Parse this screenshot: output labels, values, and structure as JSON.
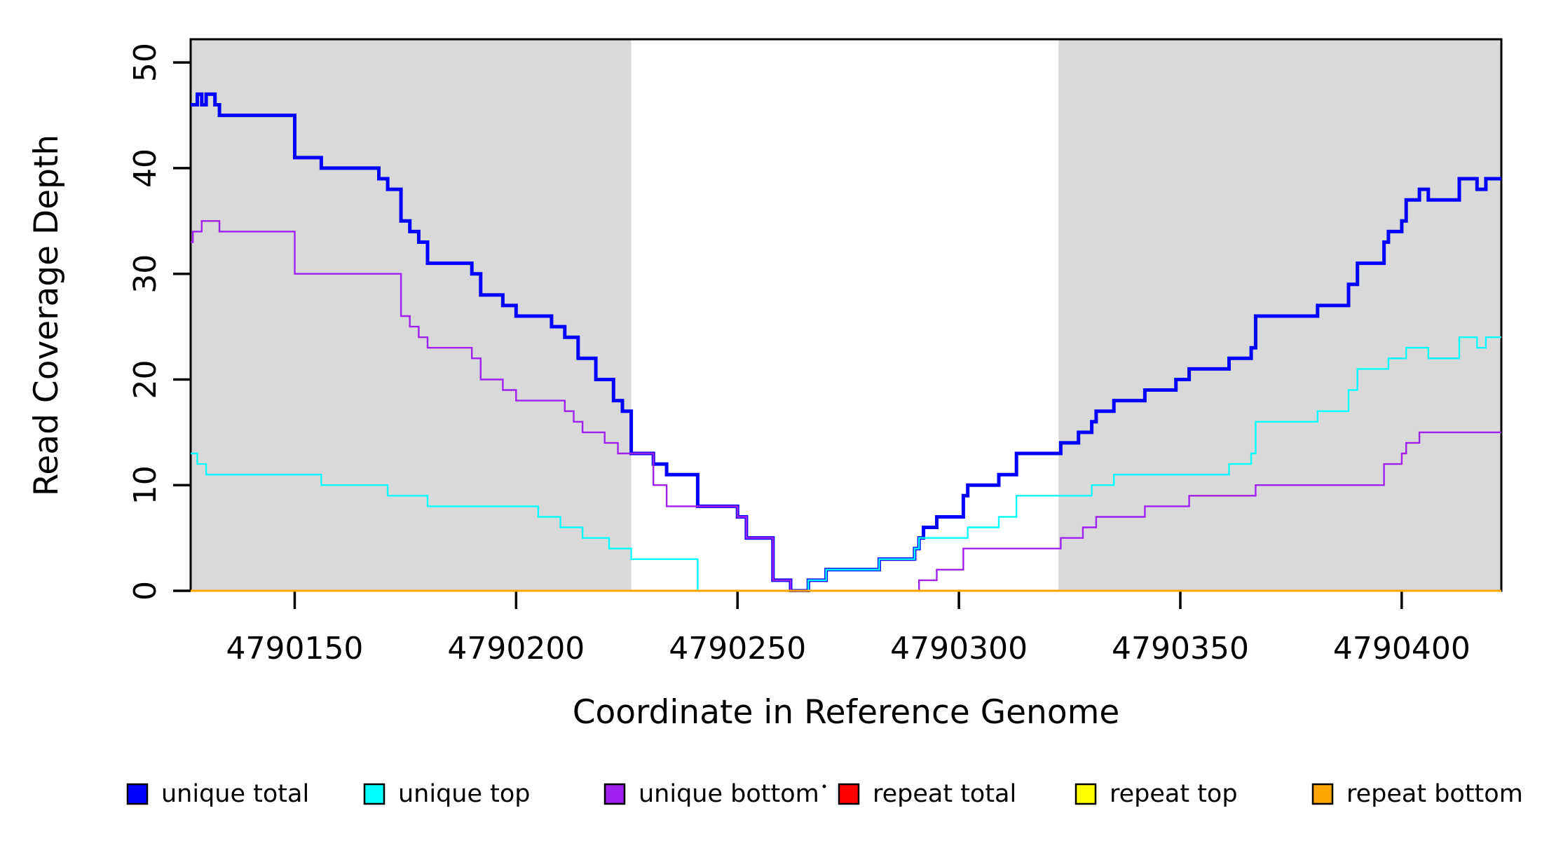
{
  "chart_data": {
    "type": "line",
    "subtype": "step-after",
    "title": "",
    "xlabel": "Coordinate in Reference Genome",
    "ylabel": "Read Coverage Depth",
    "x_range": [
      4790126.5,
      4790422.5
    ],
    "y_range": [
      0,
      52.2
    ],
    "x_ticks": [
      4790150,
      4790200,
      4790250,
      4790300,
      4790350,
      4790400
    ],
    "y_ticks": [
      0,
      10,
      20,
      30,
      40,
      50
    ],
    "grid": "off",
    "background": "#ffffff",
    "shaded_regions": [
      {
        "x0": 4790126.5,
        "x1": 4790226,
        "color": "#d9d9d9",
        "meaning": "repeat-flanking shaded band (left)"
      },
      {
        "x0": 4790322.5,
        "x1": 4790422.5,
        "color": "#d9d9d9",
        "meaning": "repeat-flanking shaded band (right)"
      }
    ],
    "series": [
      {
        "name": "unique total",
        "color": "#0000ff",
        "lwd": 5,
        "points": [
          [
            4790126.5,
            46
          ],
          [
            4790128,
            47
          ],
          [
            4790129,
            46
          ],
          [
            4790130,
            47
          ],
          [
            4790132,
            46
          ],
          [
            4790133,
            45
          ],
          [
            4790150,
            41
          ],
          [
            4790156,
            40
          ],
          [
            4790169,
            39
          ],
          [
            4790171,
            38
          ],
          [
            4790174,
            35
          ],
          [
            4790176,
            34
          ],
          [
            4790178,
            33
          ],
          [
            4790180,
            31
          ],
          [
            4790190,
            30
          ],
          [
            4790192,
            28
          ],
          [
            4790197,
            27
          ],
          [
            4790200,
            26
          ],
          [
            4790208,
            25
          ],
          [
            4790211,
            24
          ],
          [
            4790214,
            22
          ],
          [
            4790218,
            20
          ],
          [
            4790222,
            18
          ],
          [
            4790224,
            17
          ],
          [
            4790226,
            13
          ],
          [
            4790231,
            12
          ],
          [
            4790234,
            11
          ],
          [
            4790241,
            8
          ],
          [
            4790250,
            7
          ],
          [
            4790252,
            5
          ],
          [
            4790258,
            1
          ],
          [
            4790262,
            0
          ],
          [
            4790266,
            1
          ],
          [
            4790270,
            2
          ],
          [
            4790282,
            3
          ],
          [
            4790290,
            4
          ],
          [
            4790291,
            5
          ],
          [
            4790292,
            6
          ],
          [
            4790295,
            7
          ],
          [
            4790301,
            9
          ],
          [
            4790302,
            10
          ],
          [
            4790309,
            11
          ],
          [
            4790313,
            13
          ],
          [
            4790323,
            14
          ],
          [
            4790327,
            15
          ],
          [
            4790330,
            16
          ],
          [
            4790331,
            17
          ],
          [
            4790335,
            18
          ],
          [
            4790342,
            19
          ],
          [
            4790349,
            20
          ],
          [
            4790352,
            21
          ],
          [
            4790361,
            22
          ],
          [
            4790366,
            23
          ],
          [
            4790367,
            26
          ],
          [
            4790381,
            27
          ],
          [
            4790388,
            29
          ],
          [
            4790390,
            31
          ],
          [
            4790396,
            33
          ],
          [
            4790397,
            34
          ],
          [
            4790400,
            35
          ],
          [
            4790401,
            37
          ],
          [
            4790404,
            38
          ],
          [
            4790406,
            37
          ],
          [
            4790413,
            39
          ],
          [
            4790417,
            38
          ],
          [
            4790419,
            39
          ]
        ]
      },
      {
        "name": "unique top",
        "color": "#00ffff",
        "lwd": 2.4,
        "points": [
          [
            4790126.5,
            13
          ],
          [
            4790128,
            12
          ],
          [
            4790130,
            11
          ],
          [
            4790156,
            10
          ],
          [
            4790171,
            9
          ],
          [
            4790180,
            8
          ],
          [
            4790205,
            7
          ],
          [
            4790210,
            6
          ],
          [
            4790215,
            5
          ],
          [
            4790221,
            4
          ],
          [
            4790226,
            3
          ],
          [
            4790241,
            0
          ],
          [
            4790266,
            1
          ],
          [
            4790270,
            2
          ],
          [
            4790282,
            3
          ],
          [
            4790290,
            4
          ],
          [
            4790291,
            5
          ],
          [
            4790302,
            6
          ],
          [
            4790309,
            7
          ],
          [
            4790313,
            9
          ],
          [
            4790330,
            10
          ],
          [
            4790335,
            11
          ],
          [
            4790361,
            12
          ],
          [
            4790366,
            13
          ],
          [
            4790367,
            16
          ],
          [
            4790381,
            17
          ],
          [
            4790388,
            19
          ],
          [
            4790390,
            21
          ],
          [
            4790397,
            22
          ],
          [
            4790401,
            23
          ],
          [
            4790406,
            22
          ],
          [
            4790413,
            24
          ],
          [
            4790417,
            23
          ],
          [
            4790419,
            24
          ]
        ]
      },
      {
        "name": "unique bottom",
        "color": "#a020f0",
        "lwd": 2.4,
        "points": [
          [
            4790126.5,
            33
          ],
          [
            4790127,
            34
          ],
          [
            4790129,
            35
          ],
          [
            4790133,
            34
          ],
          [
            4790150,
            30
          ],
          [
            4790174,
            26
          ],
          [
            4790176,
            25
          ],
          [
            4790178,
            24
          ],
          [
            4790180,
            23
          ],
          [
            4790190,
            22
          ],
          [
            4790192,
            20
          ],
          [
            4790197,
            19
          ],
          [
            4790200,
            18
          ],
          [
            4790211,
            17
          ],
          [
            4790213,
            16
          ],
          [
            4790215,
            15
          ],
          [
            4790220,
            14
          ],
          [
            4790223,
            13
          ],
          [
            4790231,
            10
          ],
          [
            4790234,
            8
          ],
          [
            4790250,
            7
          ],
          [
            4790252,
            5
          ],
          [
            4790258,
            1
          ],
          [
            4790262,
            0
          ],
          [
            4790291,
            1
          ],
          [
            4790295,
            2
          ],
          [
            4790301,
            4
          ],
          [
            4790323,
            5
          ],
          [
            4790328,
            6
          ],
          [
            4790331,
            7
          ],
          [
            4790342,
            8
          ],
          [
            4790352,
            9
          ],
          [
            4790367,
            10
          ],
          [
            4790396,
            12
          ],
          [
            4790400,
            13
          ],
          [
            4790401,
            14
          ],
          [
            4790404,
            15
          ]
        ]
      },
      {
        "name": "repeat total",
        "color": "#ff0000",
        "lwd": 2.4,
        "points": [
          [
            4790126.5,
            0
          ]
        ]
      },
      {
        "name": "repeat top",
        "color": "#ffff00",
        "lwd": 2.4,
        "points": [
          [
            4790126.5,
            0
          ]
        ]
      },
      {
        "name": "repeat bottom",
        "color": "#ffa500",
        "lwd": 3,
        "points": [
          [
            4790126.5,
            0
          ]
        ]
      }
    ],
    "legend": {
      "position": "bottom",
      "items": [
        {
          "label": "unique total",
          "color": "#0000ff"
        },
        {
          "label": "unique top",
          "color": "#00ffff"
        },
        {
          "label": "unique bottom",
          "color": "#a020f0"
        },
        {
          "label": "repeat total",
          "color": "#ff0000",
          "dot_before": true
        },
        {
          "label": "repeat top",
          "color": "#ffff00"
        },
        {
          "label": "repeat bottom",
          "color": "#ffa500"
        }
      ]
    }
  }
}
